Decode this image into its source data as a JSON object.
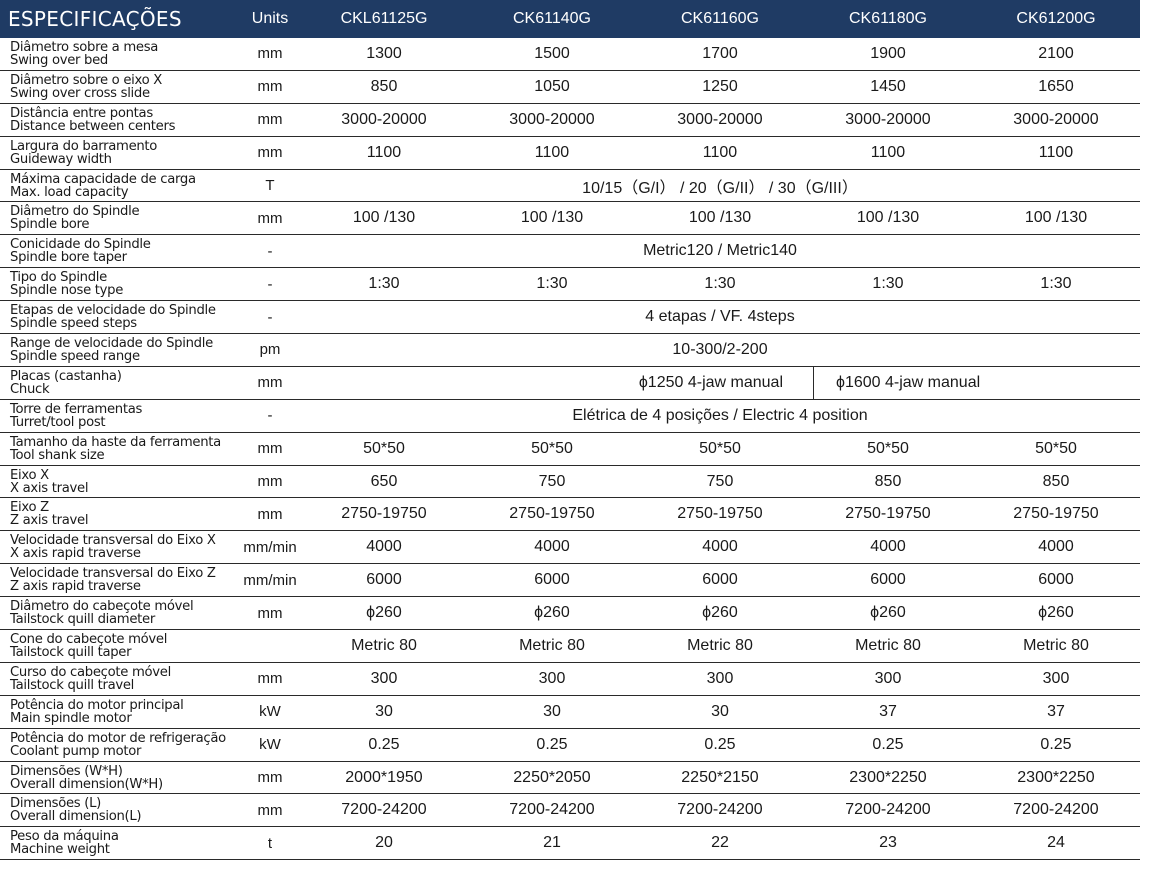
{
  "header": {
    "param": "ESPECIFICAÇÕES",
    "unit": "Units",
    "models": [
      "CKL61125G",
      "CK61140G",
      "CK61160G",
      "CK61180G",
      "CK61200G"
    ]
  },
  "rows": [
    {
      "pt": "Diâmetro sobre a mesa",
      "en": "Swing over bed",
      "unit": "mm",
      "values": [
        "1300",
        "1500",
        "1700",
        "1900",
        "2100"
      ]
    },
    {
      "pt": "Diâmetro sobre o eixo X",
      "en": "Swing over cross slide",
      "unit": "mm",
      "values": [
        "850",
        "1050",
        "1250",
        "1450",
        "1650"
      ]
    },
    {
      "pt": "Distância entre pontas",
      "en": "Distance between centers",
      "unit": "mm",
      "values": [
        "3000-20000",
        "3000-20000",
        "3000-20000",
        "3000-20000",
        "3000-20000"
      ]
    },
    {
      "pt": "Largura do barramento",
      "en": "Guideway width",
      "unit": "mm",
      "values": [
        "1100",
        "1100",
        "1100",
        "1100",
        "1100"
      ]
    },
    {
      "pt": "Máxima capacidade de carga",
      "en": "Max. load capacity",
      "unit": "T",
      "span": "10/15（G/I） / 20（G/II） / 30（G/III）"
    },
    {
      "pt": "Diâmetro do Spindle",
      "en": "Spindle bore",
      "unit": "mm",
      "values": [
        "100 /130",
        "100 /130",
        "100 /130",
        "100 /130",
        "100 /130"
      ]
    },
    {
      "pt": "Conicidade do Spindle",
      "en": "Spindle bore taper",
      "unit": "-",
      "span": "Metric120 / Metric140"
    },
    {
      "pt": "Tipo do Spindle",
      "en": "Spindle nose type",
      "unit": "-",
      "values": [
        "1:30",
        "1:30",
        "1:30",
        "1:30",
        "1:30"
      ]
    },
    {
      "pt": "Etapas de velocidade do Spindle",
      "en": "Spindle speed steps",
      "unit": "-",
      "span": "4 etapas / VF. 4steps"
    },
    {
      "pt": "Range de velocidade do Spindle",
      "en": "Spindle speed range",
      "unit": "pm",
      "span": "10-300/2-200"
    },
    {
      "pt": "Placas (castanha)",
      "en": "Chuck",
      "unit": "mm",
      "chuck": [
        "ϕ1250 4-jaw manual",
        "ϕ1600 4-jaw manual"
      ]
    },
    {
      "pt": "Torre de ferramentas",
      "en": "Turret/tool post",
      "unit": "-",
      "span": "Elétrica de 4 posições / Electric 4 position"
    },
    {
      "pt": "Tamanho da haste da ferramenta",
      "en": "Tool shank size",
      "unit": "mm",
      "values": [
        "50*50",
        "50*50",
        "50*50",
        "50*50",
        "50*50"
      ]
    },
    {
      "pt": "Eixo X",
      "en": "X axis travel",
      "unit": "mm",
      "values": [
        "650",
        "750",
        "750",
        "850",
        "850"
      ]
    },
    {
      "pt": "Eixo Z",
      "en": "Z axis travel",
      "unit": "mm",
      "values": [
        "2750-19750",
        "2750-19750",
        "2750-19750",
        "2750-19750",
        "2750-19750"
      ]
    },
    {
      "pt": "Velocidade transversal do Eixo X",
      "en": "X axis rapid traverse",
      "unit": "mm/min",
      "values": [
        "4000",
        "4000",
        "4000",
        "4000",
        "4000"
      ]
    },
    {
      "pt": "Velocidade transversal do Eixo Z",
      "en": "Z axis rapid traverse",
      "unit": "mm/min",
      "values": [
        "6000",
        "6000",
        "6000",
        "6000",
        "6000"
      ]
    },
    {
      "pt": "Diâmetro do cabeçote móvel",
      "en": "Tailstock quill diameter",
      "unit": "mm",
      "values": [
        "ϕ260",
        "ϕ260",
        "ϕ260",
        "ϕ260",
        "ϕ260"
      ]
    },
    {
      "pt": "Cone do cabeçote móvel",
      "en": "Tailstock quill taper",
      "unit": "",
      "values": [
        "Metric 80",
        "Metric 80",
        "Metric 80",
        "Metric 80",
        "Metric 80"
      ]
    },
    {
      "pt": "Curso do cabeçote móvel",
      "en": "Tailstock quill travel",
      "unit": "mm",
      "values": [
        "300",
        "300",
        "300",
        "300",
        "300"
      ]
    },
    {
      "pt": "Potência do motor principal",
      "en": "Main spindle motor",
      "unit": "kW",
      "values": [
        "30",
        "30",
        "30",
        "37",
        "37"
      ]
    },
    {
      "pt": "Potência do motor de refrigeração",
      "en": "Coolant pump motor",
      "unit": "kW",
      "values": [
        "0.25",
        "0.25",
        "0.25",
        "0.25",
        "0.25"
      ]
    },
    {
      "pt": "Dimensões (W*H)",
      "en": "Overall dimension(W*H)",
      "unit": "mm",
      "values": [
        "2000*1950",
        "2250*2050",
        "2250*2150",
        "2300*2250",
        "2300*2250"
      ]
    },
    {
      "pt": "Dimensões (L)",
      "en": "Overall dimension(L)",
      "unit": "mm",
      "values": [
        "7200-24200",
        "7200-24200",
        "7200-24200",
        "7200-24200",
        "7200-24200"
      ]
    },
    {
      "pt": "Peso da máquina",
      "en": "Machine weight",
      "unit": "t",
      "values": [
        "20",
        "21",
        "22",
        "23",
        "24"
      ]
    }
  ],
  "colors": {
    "header_bg": "#1f3b64",
    "header_text": "#ffffff",
    "rule": "#2a2a2a"
  }
}
